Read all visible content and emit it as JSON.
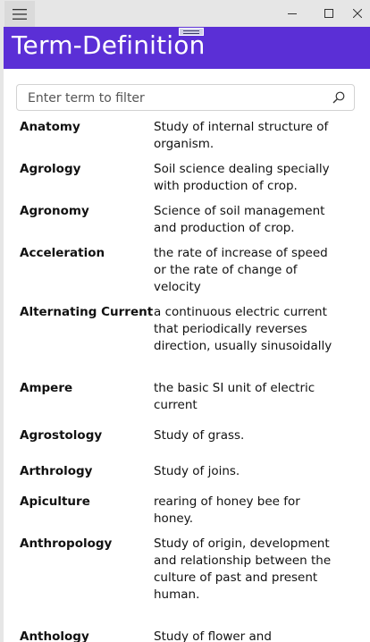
{
  "app": {
    "title": "Term-Definition"
  },
  "titlebar": {
    "menu_icon": "hamburger-icon",
    "minimize_icon": "minimize-icon",
    "maximize_icon": "maximize-icon",
    "close_icon": "close-icon"
  },
  "search": {
    "placeholder": "Enter term to filter",
    "value": "",
    "icon": "search-icon"
  },
  "colors": {
    "header_bg": "#5b2fd6",
    "titlebar_bg": "#e6e6e6"
  },
  "terms": [
    {
      "term": "Anatomy",
      "definition": "Study of internal structure of organism."
    },
    {
      "term": "Agrology",
      "definition": "Soil science dealing specially with production of crop."
    },
    {
      "term": "Agronomy",
      "definition": "Science of soil management and production of crop."
    },
    {
      "term": "Acceleration",
      "definition": "the rate of increase of speed or the rate of change of velocity"
    },
    {
      "term": "Alternating Current",
      "definition": "a continuous electric current that periodically reverses direction, usually sinusoidally"
    },
    {
      "term": "Ampere",
      "definition": "the basic SI unit of electric current"
    },
    {
      "term": "Agrostology",
      "definition": "Study of grass."
    },
    {
      "term": "Arthrology",
      "definition": " Study of joins."
    },
    {
      "term": "Apiculture",
      "definition": "rearing of honey bee for honey."
    },
    {
      "term": "Anthropology",
      "definition": "Study of origin, development and relationship between the culture of past and present human."
    },
    {
      "term": "Anthology",
      "definition": "Study of flower and"
    }
  ]
}
